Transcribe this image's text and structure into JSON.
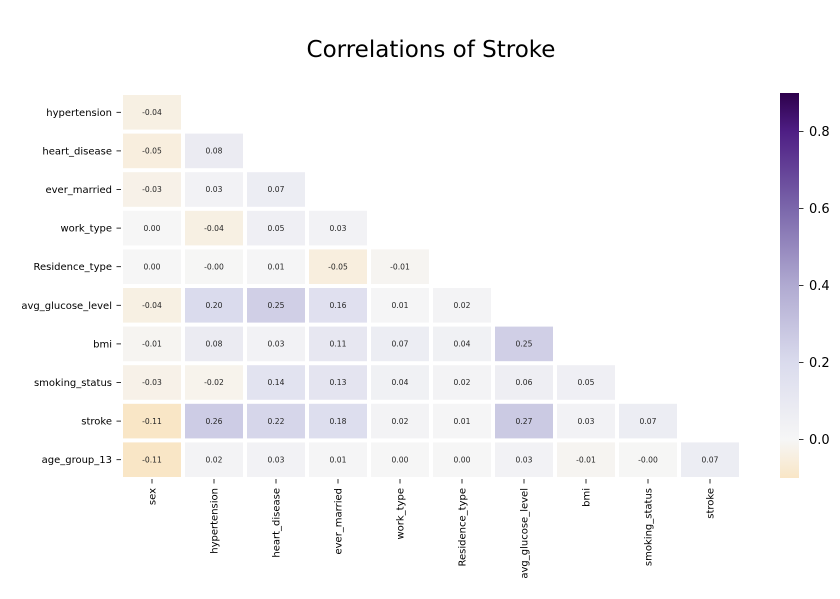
{
  "chart_data": {
    "type": "heatmap",
    "title": "Correlations of Stroke",
    "xlabel": "",
    "ylabel": "",
    "mask": "lower-triangle",
    "x_categories": [
      "sex",
      "hypertension",
      "heart_disease",
      "ever_married",
      "work_type",
      "Residence_type",
      "avg_glucose_level",
      "bmi",
      "smoking_status",
      "stroke"
    ],
    "y_categories": [
      "hypertension",
      "heart_disease",
      "ever_married",
      "work_type",
      "Residence_type",
      "avg_glucose_level",
      "bmi",
      "smoking_status",
      "stroke",
      "age_group_13"
    ],
    "values": [
      [
        -0.04
      ],
      [
        -0.05,
        0.08
      ],
      [
        -0.03,
        0.03,
        0.07
      ],
      [
        0.0,
        -0.04,
        0.05,
        0.03
      ],
      [
        0.0,
        -0.002,
        0.01,
        -0.05,
        -0.01
      ],
      [
        -0.04,
        0.2,
        0.25,
        0.16,
        0.01,
        0.02
      ],
      [
        -0.01,
        0.08,
        0.03,
        0.11,
        0.07,
        0.04,
        0.25
      ],
      [
        -0.03,
        -0.02,
        0.14,
        0.13,
        0.04,
        0.02,
        0.06,
        0.05
      ],
      [
        -0.11,
        0.26,
        0.22,
        0.18,
        0.02,
        0.01,
        0.27,
        0.03,
        0.07
      ],
      [
        -0.11,
        0.02,
        0.03,
        0.01,
        0.0,
        0.0,
        0.03,
        -0.01,
        -0.002,
        0.07
      ]
    ],
    "value_labels": [
      [
        "-0.04"
      ],
      [
        "-0.05",
        "0.08"
      ],
      [
        "-0.03",
        "0.03",
        "0.07"
      ],
      [
        "0.00",
        "-0.04",
        "0.05",
        "0.03"
      ],
      [
        "0.00",
        "-0.00",
        "0.01",
        "-0.05",
        "-0.01"
      ],
      [
        "-0.04",
        "0.20",
        "0.25",
        "0.16",
        "0.01",
        "0.02"
      ],
      [
        "-0.01",
        "0.08",
        "0.03",
        "0.11",
        "0.07",
        "0.04",
        "0.25"
      ],
      [
        "-0.03",
        "-0.02",
        "0.14",
        "0.13",
        "0.04",
        "0.02",
        "0.06",
        "0.05"
      ],
      [
        "-0.11",
        "0.26",
        "0.22",
        "0.18",
        "0.02",
        "0.01",
        "0.27",
        "0.03",
        "0.07"
      ],
      [
        "-0.11",
        "0.02",
        "0.03",
        "0.01",
        "0.00",
        "0.00",
        "0.03",
        "-0.01",
        "-0.00",
        "0.07"
      ]
    ],
    "colorbar": {
      "vmin": -0.1,
      "vmax": 0.9,
      "ticks": [
        0.0,
        0.2,
        0.4,
        0.6,
        0.8
      ],
      "tick_labels": [
        "0.0",
        "0.2",
        "0.4",
        "0.6",
        "0.8"
      ],
      "colormap": "PuOr",
      "colormap_stops": [
        {
          "value": -0.1,
          "color": "#f9e6c6"
        },
        {
          "value": 0.0,
          "color": "#f6f6f6"
        },
        {
          "value": 0.2,
          "color": "#dadbed"
        },
        {
          "value": 0.4,
          "color": "#b0aad1"
        },
        {
          "value": 0.6,
          "color": "#7b67ab"
        },
        {
          "value": 0.8,
          "color": "#4e1e84"
        },
        {
          "value": 0.9,
          "color": "#2d004b"
        }
      ]
    },
    "grid": false,
    "legend": "colorbar-right"
  }
}
